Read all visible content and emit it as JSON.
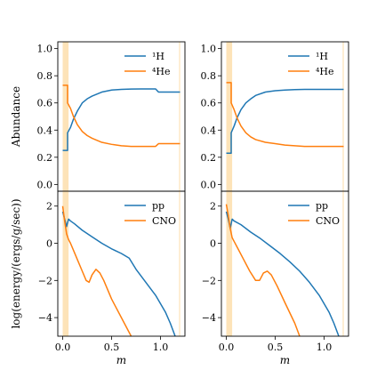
{
  "colors": {
    "blue": "#1f77b4",
    "orange": "#ff7f0e",
    "band": "#fde3b8"
  },
  "chart_data": [
    {
      "type": "line",
      "panel": "top-left",
      "ylabel": "Abundance",
      "xlim": [
        -0.05,
        1.25
      ],
      "ylim": [
        -0.05,
        1.05
      ],
      "yticks": [
        0.0,
        0.2,
        0.4,
        0.6,
        0.8,
        1.0
      ],
      "ytick_labels": [
        "0.0",
        "0.2",
        "0.4",
        "0.6",
        "0.8",
        "1.0"
      ],
      "legend": "top-right",
      "shaded_bands": [
        [
          0.0,
          0.06
        ],
        [
          1.19,
          1.2
        ]
      ],
      "series": [
        {
          "name": "¹H",
          "color": "#1f77b4",
          "x": [
            0.0,
            0.05,
            0.05,
            0.08,
            0.11,
            0.15,
            0.2,
            0.25,
            0.3,
            0.4,
            0.5,
            0.6,
            0.7,
            0.8,
            0.95,
            0.98,
            1.0,
            1.05,
            1.1,
            1.2
          ],
          "y": [
            0.25,
            0.25,
            0.38,
            0.42,
            0.48,
            0.54,
            0.6,
            0.63,
            0.65,
            0.68,
            0.695,
            0.7,
            0.702,
            0.703,
            0.703,
            0.68,
            0.68,
            0.68,
            0.68,
            0.68
          ]
        },
        {
          "name": "⁴He",
          "color": "#ff7f0e",
          "x": [
            0.0,
            0.05,
            0.05,
            0.08,
            0.11,
            0.15,
            0.2,
            0.25,
            0.3,
            0.4,
            0.5,
            0.6,
            0.7,
            0.8,
            0.95,
            0.98,
            1.0,
            1.05,
            1.1,
            1.2
          ],
          "y": [
            0.73,
            0.73,
            0.6,
            0.56,
            0.5,
            0.44,
            0.39,
            0.36,
            0.34,
            0.31,
            0.295,
            0.285,
            0.28,
            0.28,
            0.28,
            0.3,
            0.3,
            0.3,
            0.3,
            0.3
          ]
        }
      ]
    },
    {
      "type": "line",
      "panel": "top-right",
      "xlim": [
        -0.05,
        1.25
      ],
      "ylim": [
        -0.05,
        1.05
      ],
      "yticks": [
        0.0,
        0.2,
        0.4,
        0.6,
        0.8,
        1.0
      ],
      "ytick_labels": [
        "0.0",
        "0.2",
        "0.4",
        "0.6",
        "0.8",
        "1.0"
      ],
      "legend": "top-right",
      "shaded_bands": [
        [
          0.0,
          0.06
        ],
        [
          1.19,
          1.2
        ]
      ],
      "series": [
        {
          "name": "¹H",
          "color": "#1f77b4",
          "x": [
            0.0,
            0.05,
            0.05,
            0.08,
            0.11,
            0.15,
            0.2,
            0.25,
            0.3,
            0.4,
            0.5,
            0.6,
            0.7,
            0.8,
            0.9,
            1.0,
            1.1,
            1.2
          ],
          "y": [
            0.23,
            0.23,
            0.38,
            0.43,
            0.49,
            0.55,
            0.6,
            0.63,
            0.655,
            0.68,
            0.69,
            0.695,
            0.698,
            0.7,
            0.7,
            0.7,
            0.7,
            0.7
          ]
        },
        {
          "name": "⁴He",
          "color": "#ff7f0e",
          "x": [
            0.0,
            0.05,
            0.05,
            0.08,
            0.11,
            0.15,
            0.2,
            0.25,
            0.3,
            0.4,
            0.5,
            0.6,
            0.7,
            0.8,
            0.9,
            1.0,
            1.1,
            1.2
          ],
          "y": [
            0.75,
            0.75,
            0.6,
            0.55,
            0.49,
            0.43,
            0.38,
            0.35,
            0.33,
            0.31,
            0.3,
            0.29,
            0.285,
            0.28,
            0.28,
            0.28,
            0.28,
            0.28
          ]
        }
      ]
    },
    {
      "type": "line",
      "panel": "bottom-left",
      "xlabel": "m",
      "ylabel": "log(energy/(ergs/g/sec))",
      "xlim": [
        -0.05,
        1.25
      ],
      "ylim": [
        -5.0,
        2.8
      ],
      "xticks": [
        0.0,
        0.5,
        1.0
      ],
      "xtick_labels": [
        "0.0",
        "0.5",
        "1.0"
      ],
      "yticks": [
        -4,
        -2,
        0,
        2
      ],
      "ytick_labels": [
        "−4",
        "−2",
        "0",
        "2"
      ],
      "legend": "top-right",
      "shaded_bands": [
        [
          0.0,
          0.06
        ],
        [
          1.19,
          1.2
        ]
      ],
      "series": [
        {
          "name": "pp",
          "color": "#1f77b4",
          "x": [
            0.0,
            0.02,
            0.04,
            0.06,
            0.08,
            0.12,
            0.2,
            0.3,
            0.4,
            0.5,
            0.6,
            0.68,
            0.75,
            0.85,
            0.95,
            1.05,
            1.1,
            1.15
          ],
          "y": [
            1.7,
            1.3,
            0.9,
            1.3,
            1.2,
            1.05,
            0.7,
            0.35,
            0.0,
            -0.3,
            -0.55,
            -0.8,
            -1.4,
            -2.1,
            -2.8,
            -3.7,
            -4.3,
            -5.0
          ]
        },
        {
          "name": "CNO",
          "color": "#ff7f0e",
          "x": [
            0.0,
            0.02,
            0.04,
            0.06,
            0.08,
            0.12,
            0.16,
            0.2,
            0.24,
            0.27,
            0.3,
            0.34,
            0.38,
            0.42,
            0.5,
            0.6,
            0.7
          ],
          "y": [
            2.0,
            1.2,
            0.5,
            0.2,
            0.0,
            -0.5,
            -1.0,
            -1.5,
            -2.0,
            -2.1,
            -1.7,
            -1.4,
            -1.6,
            -2.0,
            -3.0,
            -4.0,
            -5.0
          ]
        }
      ]
    },
    {
      "type": "line",
      "panel": "bottom-right",
      "xlabel": "m",
      "xlim": [
        -0.05,
        1.25
      ],
      "ylim": [
        -5.0,
        2.8
      ],
      "xticks": [
        0.0,
        0.5,
        1.0
      ],
      "xtick_labels": [
        "0.0",
        "0.5",
        "1.0"
      ],
      "yticks": [
        -4,
        -2,
        0,
        2
      ],
      "ytick_labels": [
        "−4",
        "−2",
        "0",
        "2"
      ],
      "legend": "top-right",
      "shaded_bands": [
        [
          0.0,
          0.06
        ],
        [
          1.19,
          1.2
        ]
      ],
      "series": [
        {
          "name": "pp",
          "color": "#1f77b4",
          "x": [
            0.0,
            0.02,
            0.04,
            0.06,
            0.08,
            0.15,
            0.25,
            0.35,
            0.45,
            0.55,
            0.65,
            0.75,
            0.85,
            0.95,
            1.05,
            1.1,
            1.15
          ],
          "y": [
            1.7,
            1.3,
            0.8,
            1.3,
            1.2,
            1.0,
            0.6,
            0.25,
            -0.15,
            -0.55,
            -1.0,
            -1.5,
            -2.1,
            -2.8,
            -3.7,
            -4.3,
            -5.0
          ]
        },
        {
          "name": "CNO",
          "color": "#ff7f0e",
          "x": [
            0.0,
            0.02,
            0.04,
            0.06,
            0.08,
            0.12,
            0.18,
            0.24,
            0.3,
            0.34,
            0.38,
            0.42,
            0.46,
            0.52,
            0.6,
            0.7,
            0.75
          ],
          "y": [
            2.1,
            1.5,
            0.8,
            0.3,
            0.1,
            -0.3,
            -0.9,
            -1.5,
            -2.0,
            -2.0,
            -1.6,
            -1.5,
            -1.7,
            -2.3,
            -3.2,
            -4.3,
            -5.0
          ]
        }
      ]
    }
  ]
}
